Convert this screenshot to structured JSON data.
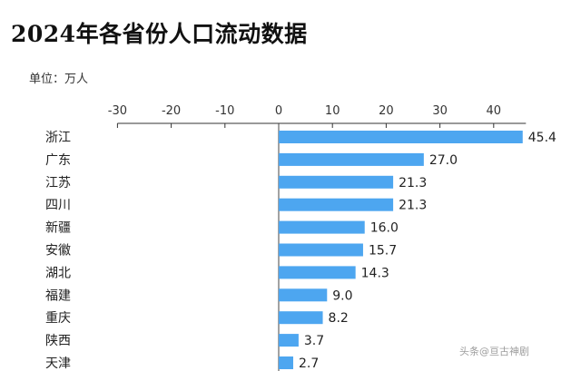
{
  "watermark": "头条@亘古神剧",
  "chart_data": {
    "type": "bar",
    "orientation": "horizontal",
    "title": "2024年各省份人口流动数据",
    "unit_label": "单位：万人",
    "xlim": [
      -30,
      46
    ],
    "ticks": [
      -30,
      -20,
      -10,
      0,
      10,
      20,
      30,
      40
    ],
    "bar_color": "#4da6f0",
    "categories": [
      "浙江",
      "广东",
      "江苏",
      "四川",
      "新疆",
      "安徽",
      "湖北",
      "福建",
      "重庆",
      "陕西",
      "天津"
    ],
    "values": [
      45.4,
      27.0,
      21.3,
      21.3,
      16.0,
      15.7,
      14.3,
      9.0,
      8.2,
      3.7,
      2.7
    ],
    "value_labels": [
      "45.4",
      "27.0",
      "21.3",
      "21.3",
      "16.0",
      "15.7",
      "14.3",
      "9.0",
      "8.2",
      "3.7",
      "2.7"
    ]
  }
}
